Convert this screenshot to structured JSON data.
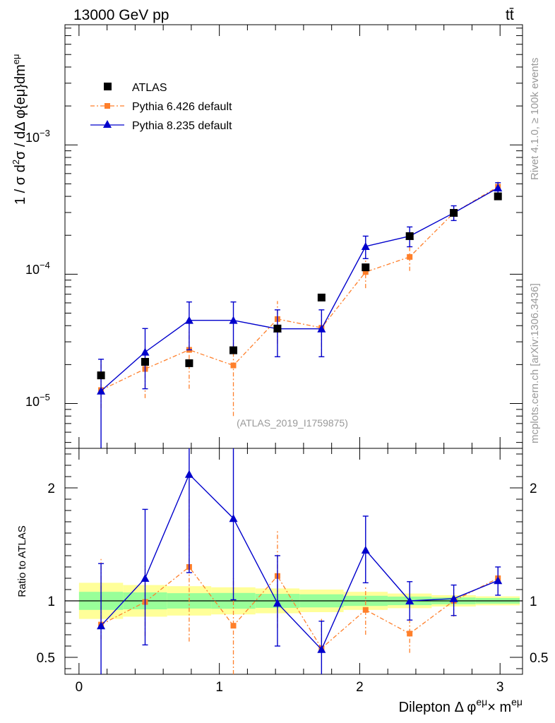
{
  "header": {
    "energy_label": "13000 GeV pp",
    "process_label": "tt̄"
  },
  "side_labels": {
    "rivet": "Rivet 4.1.0, ≥ 100k events",
    "mcplots": "mcplots.cern.ch [arXiv:1306.3436]"
  },
  "analysis_id": "(ATLAS_2019_I1759875)",
  "chart_data": [
    {
      "type": "scatter",
      "panel": "main",
      "ylabel": "1 / σ  d²σ / dΔ φ{eμ}dm^eμ",
      "yscale": "log",
      "ylim": [
        4.5e-06,
        0.0085
      ],
      "xlim": [
        -0.1,
        3.16
      ],
      "legend_position": "top-left",
      "x": [
        0.157,
        0.471,
        0.785,
        1.1,
        1.414,
        1.728,
        2.042,
        2.356,
        2.67,
        2.985
      ],
      "series": [
        {
          "name": "ATLAS",
          "values": [
            1.65e-05,
            2.1e-05,
            2.05e-05,
            2.58e-05,
            3.8e-05,
            6.6e-05,
            0.000113,
            0.000197,
            0.000298,
            0.0004
          ]
        },
        {
          "name": "Pythia 6.426 default",
          "values": [
            1.27e-05,
            1.85e-05,
            2.6e-05,
            1.97e-05,
            4.5e-05,
            3.85e-05,
            0.000104,
            0.000136,
            0.000298,
            0.000475
          ],
          "err_low": [
            9.2e-06,
            1.1e-05,
            1.3e-05,
            8e-06,
            2.9e-05,
            2.3e-05,
            7.8e-05,
            0.000106,
            0.000258,
            0.00043
          ],
          "err_high": [
            2.15e-05,
            2.7e-05,
            3.6e-05,
            3.1e-05,
            6.2e-05,
            5.3e-05,
            0.000128,
            0.000165,
            0.00034,
            0.00052
          ]
        },
        {
          "name": "Pythia 8.235 default",
          "values": [
            1.25e-05,
            2.5e-05,
            4.4e-05,
            4.4e-05,
            3.78e-05,
            3.78e-05,
            0.000164,
            0.000197,
            0.000298,
            0.000465
          ],
          "err_low": [
            4e-06,
            1.3e-05,
            2.6e-05,
            2.6e-05,
            2.3e-05,
            2.3e-05,
            0.000132,
            0.000163,
            0.00026,
            0.00042
          ],
          "err_high": [
            2.2e-05,
            3.8e-05,
            6.1e-05,
            6.1e-05,
            5.3e-05,
            5.3e-05,
            0.000197,
            0.000232,
            0.000338,
            0.00051
          ]
        }
      ],
      "y_tick_labels": [
        "10^-5",
        "10^-4",
        "10^-3"
      ]
    },
    {
      "type": "scatter",
      "panel": "ratio",
      "ylabel": "Ratio to ATLAS",
      "xlabel": "Dilepton Δ φ^eμ × m^eμ",
      "ylim": [
        0.35,
        2.35
      ],
      "xlim": [
        -0.1,
        3.16
      ],
      "reference_line": 1,
      "x_ticks": [
        0,
        1,
        2,
        3
      ],
      "x_tick_labels": [
        "0",
        "1",
        "2",
        "3"
      ],
      "y_ticks": [
        0.5,
        1,
        2
      ],
      "y_tick_labels": [
        "0.5",
        "1",
        "2"
      ],
      "x": [
        0.157,
        0.471,
        0.785,
        1.1,
        1.414,
        1.728,
        2.042,
        2.356,
        2.67,
        2.985
      ],
      "band_edges": [
        0,
        0.314,
        0.628,
        0.942,
        1.257,
        1.571,
        1.885,
        2.199,
        2.513,
        2.827,
        3.14
      ],
      "band_inner": [
        0.08,
        0.075,
        0.068,
        0.07,
        0.062,
        0.058,
        0.045,
        0.038,
        0.03,
        0.025
      ],
      "band_outer": [
        0.16,
        0.14,
        0.13,
        0.12,
        0.11,
        0.1,
        0.08,
        0.065,
        0.05,
        0.04
      ],
      "band_colors": {
        "inner": "#99ff99",
        "outer": "#ffff99"
      },
      "series": [
        {
          "name": "Pythia 6.426 default",
          "color": "#ff7f2a",
          "values": [
            0.79,
            0.99,
            1.3,
            0.78,
            1.22,
            0.58,
            0.92,
            0.71,
            1.0,
            1.2
          ],
          "err_low": [
            0.66,
            0.69,
            0.64,
            0.35,
            0.76,
            0.55,
            0.7,
            0.54,
            0.86,
            1.08
          ],
          "err_high": [
            1.37,
            1.31,
            1.9,
            1.2,
            1.62,
            0.84,
            1.12,
            0.88,
            1.12,
            1.3
          ]
        },
        {
          "name": "Pythia 8.235 default",
          "color": "#0000cc",
          "values": [
            0.78,
            1.2,
            2.12,
            1.73,
            0.98,
            0.57,
            1.45,
            1.0,
            1.02,
            1.18
          ],
          "err_low": [
            0.2,
            0.61,
            1.25,
            1.01,
            0.6,
            0.35,
            1.16,
            0.83,
            0.87,
            1.05
          ],
          "err_high": [
            1.33,
            1.81,
            2.35,
            2.35,
            1.4,
            0.82,
            1.75,
            1.17,
            1.14,
            1.3
          ]
        }
      ]
    }
  ]
}
